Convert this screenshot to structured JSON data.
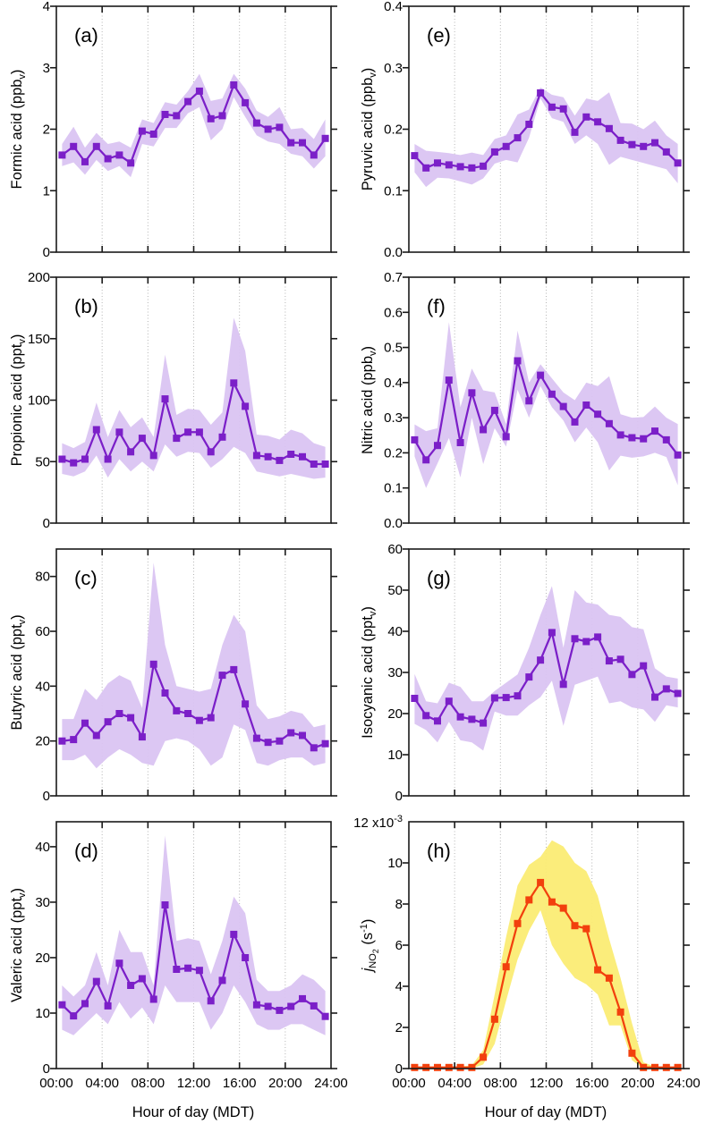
{
  "figure": {
    "xlabel": "Hour of day (MDT)",
    "x_tick_labels": [
      "00:00",
      "04:00",
      "08:00",
      "12:00",
      "16:00",
      "20:00",
      "24:00"
    ],
    "x_tick_hours": [
      0,
      4,
      8,
      12,
      16,
      20,
      24
    ],
    "grid_hours": [
      4,
      8,
      12,
      16,
      20
    ],
    "x_hours": [
      0.5,
      1.5,
      2.5,
      3.5,
      4.5,
      5.5,
      6.5,
      7.5,
      8.5,
      9.5,
      10.5,
      11.5,
      12.5,
      13.5,
      14.5,
      15.5,
      16.5,
      17.5,
      18.5,
      19.5,
      20.5,
      21.5,
      22.5,
      23.5
    ],
    "colors": {
      "acid_line": "#7B1FC8",
      "acid_band": "#DAC4F2",
      "jno2_line": "#F2400D",
      "jno2_band": "#FBEC74",
      "grid": "#B5B5B5",
      "axis": "#1A1A1A"
    }
  },
  "chart_data": [
    {
      "id": "a",
      "type": "line+band",
      "letter": "(a)",
      "ylabel_segments": [
        {
          "text": "Formic acid (ppb"
        },
        {
          "text": "v",
          "style": "sub"
        },
        {
          "text": ")"
        }
      ],
      "ylim": [
        0,
        4
      ],
      "ytick_values": [
        0,
        1,
        2,
        3,
        4
      ],
      "ytick_labels": [
        "0",
        "1",
        "2",
        "3",
        "4"
      ],
      "values": [
        1.58,
        1.72,
        1.47,
        1.72,
        1.52,
        1.58,
        1.45,
        1.97,
        1.92,
        2.24,
        2.22,
        2.45,
        2.62,
        2.17,
        2.22,
        2.72,
        2.43,
        2.1,
        2.0,
        2.03,
        1.78,
        1.78,
        1.58,
        1.85
      ],
      "band_upper": [
        1.76,
        2.04,
        1.7,
        1.94,
        1.76,
        1.8,
        1.7,
        2.16,
        2.1,
        2.44,
        2.4,
        2.62,
        2.9,
        2.46,
        2.5,
        2.9,
        2.66,
        2.3,
        2.2,
        2.36,
        2.0,
        2.02,
        1.84,
        2.16
      ],
      "band_lower": [
        1.4,
        1.46,
        1.26,
        1.5,
        1.32,
        1.4,
        1.22,
        1.76,
        1.72,
        2.02,
        2.02,
        2.26,
        2.36,
        1.82,
        2.0,
        2.52,
        2.2,
        1.9,
        1.8,
        1.76,
        1.6,
        1.56,
        1.36,
        1.56
      ],
      "line_color": "#7B1FC8",
      "band_color": "#DAC4F2"
    },
    {
      "id": "b",
      "type": "line+band",
      "letter": "(b)",
      "ylabel_segments": [
        {
          "text": "Propionic acid (ppt"
        },
        {
          "text": "v",
          "style": "sub"
        },
        {
          "text": ")"
        }
      ],
      "ylim": [
        0,
        200
      ],
      "ytick_values": [
        0,
        50,
        100,
        150,
        200
      ],
      "ytick_labels": [
        "0",
        "50",
        "100",
        "150",
        "200"
      ],
      "values": [
        52,
        49,
        52,
        76,
        52,
        74,
        58,
        69,
        55,
        101,
        69,
        74,
        74,
        58,
        70,
        114,
        95,
        55,
        54,
        51,
        56,
        54,
        48,
        48
      ],
      "band_upper": [
        65,
        61,
        66,
        98,
        70,
        92,
        78,
        86,
        70,
        137,
        88,
        93,
        92,
        80,
        90,
        167,
        140,
        72,
        71,
        68,
        76,
        73,
        65,
        62
      ],
      "band_lower": [
        40,
        38,
        42,
        55,
        37,
        52,
        42,
        50,
        42,
        64,
        54,
        58,
        57,
        45,
        52,
        62,
        57,
        42,
        40,
        38,
        40,
        38,
        36,
        37
      ],
      "line_color": "#7B1FC8",
      "band_color": "#DAC4F2"
    },
    {
      "id": "c",
      "type": "line+band",
      "letter": "(c)",
      "ylabel_segments": [
        {
          "text": "Butyric acid (ppt"
        },
        {
          "text": "v",
          "style": "sub"
        },
        {
          "text": ")"
        }
      ],
      "ylim": [
        0,
        90
      ],
      "ytick_values": [
        0,
        20,
        40,
        60,
        80
      ],
      "ytick_labels": [
        "0",
        "20",
        "40",
        "60",
        "80"
      ],
      "values": [
        20,
        20.5,
        26.5,
        22,
        27,
        30,
        28.5,
        21.5,
        48,
        37.5,
        31,
        30,
        27.5,
        28.5,
        44,
        46,
        33.5,
        21,
        19.5,
        20,
        23,
        22,
        17.5,
        19
      ],
      "band_upper": [
        28,
        28,
        39,
        35,
        41,
        44,
        42,
        32,
        85,
        55,
        40,
        39,
        38,
        39,
        55,
        66,
        60,
        33,
        28,
        29,
        31,
        30,
        25,
        26
      ],
      "band_lower": [
        13,
        13,
        15,
        10,
        14,
        17,
        15,
        12,
        11,
        20,
        21,
        20,
        17,
        11,
        14,
        26,
        24,
        12,
        11,
        13,
        14,
        14,
        11,
        12
      ],
      "line_color": "#7B1FC8",
      "band_color": "#DAC4F2"
    },
    {
      "id": "d",
      "type": "line+band",
      "letter": "(d)",
      "ylabel_segments": [
        {
          "text": "Valeric acid (ppt"
        },
        {
          "text": "v",
          "style": "sub"
        },
        {
          "text": ")"
        }
      ],
      "ylim": [
        0,
        44.5
      ],
      "ytick_values": [
        0,
        10,
        20,
        30,
        40
      ],
      "ytick_labels": [
        "0",
        "10",
        "20",
        "30",
        "40"
      ],
      "values": [
        11.5,
        9.5,
        11.7,
        15.7,
        11.3,
        19,
        15,
        16.2,
        12.5,
        29.5,
        17.9,
        18.1,
        17.7,
        12.2,
        15.9,
        24.2,
        20,
        11.5,
        11.2,
        10.5,
        11.2,
        12.6,
        11.3,
        9.4
      ],
      "band_upper": [
        15,
        13,
        15,
        21,
        15,
        25,
        21,
        21,
        15,
        42,
        23,
        23.5,
        23,
        17,
        23,
        31,
        28,
        16,
        14,
        14,
        15,
        17,
        16,
        14
      ],
      "band_lower": [
        7,
        6,
        8,
        10,
        8,
        12,
        9,
        11,
        8,
        15,
        12,
        12,
        12,
        7,
        10,
        15,
        12,
        8,
        7,
        7,
        8,
        8,
        7,
        6
      ],
      "line_color": "#7B1FC8",
      "band_color": "#DAC4F2"
    },
    {
      "id": "e",
      "type": "line+band",
      "letter": "(e)",
      "ylabel_segments": [
        {
          "text": "Pyruvic acid (ppb"
        },
        {
          "text": "v",
          "style": "sub"
        },
        {
          "text": ")"
        }
      ],
      "ylim": [
        0,
        0.4
      ],
      "ytick_values": [
        0,
        0.1,
        0.2,
        0.3,
        0.4
      ],
      "ytick_labels": [
        "0.0",
        "0.1",
        "0.2",
        "0.3",
        "0.4"
      ],
      "values": [
        0.157,
        0.137,
        0.145,
        0.142,
        0.139,
        0.137,
        0.14,
        0.163,
        0.172,
        0.186,
        0.208,
        0.259,
        0.236,
        0.233,
        0.195,
        0.22,
        0.212,
        0.201,
        0.182,
        0.175,
        0.172,
        0.178,
        0.163,
        0.145
      ],
      "band_upper": [
        0.176,
        0.165,
        0.163,
        0.161,
        0.158,
        0.162,
        0.158,
        0.184,
        0.19,
        0.224,
        0.232,
        0.268,
        0.256,
        0.252,
        0.222,
        0.25,
        0.246,
        0.26,
        0.21,
        0.209,
        0.2,
        0.214,
        0.19,
        0.176
      ],
      "band_lower": [
        0.13,
        0.106,
        0.121,
        0.12,
        0.115,
        0.11,
        0.12,
        0.144,
        0.15,
        0.146,
        0.186,
        0.25,
        0.218,
        0.212,
        0.176,
        0.19,
        0.176,
        0.142,
        0.155,
        0.15,
        0.145,
        0.14,
        0.135,
        0.112
      ],
      "line_color": "#7B1FC8",
      "band_color": "#DAC4F2"
    },
    {
      "id": "f",
      "type": "line+band",
      "letter": "(f)",
      "ylabel_segments": [
        {
          "text": "Nitric acid (ppb"
        },
        {
          "text": "v",
          "style": "sub"
        },
        {
          "text": ")"
        }
      ],
      "ylim": [
        0,
        0.7
      ],
      "ytick_values": [
        0,
        0.1,
        0.2,
        0.3,
        0.4,
        0.5,
        0.6,
        0.7
      ],
      "ytick_labels": [
        "0.0",
        "0.1",
        "0.2",
        "0.3",
        "0.4",
        "0.5",
        "0.6",
        "0.7"
      ],
      "values": [
        0.237,
        0.18,
        0.221,
        0.407,
        0.229,
        0.371,
        0.266,
        0.321,
        0.246,
        0.462,
        0.348,
        0.421,
        0.367,
        0.332,
        0.288,
        0.336,
        0.31,
        0.283,
        0.251,
        0.243,
        0.24,
        0.262,
        0.237,
        0.194
      ],
      "band_upper": [
        0.281,
        0.262,
        0.27,
        0.572,
        0.33,
        0.44,
        0.378,
        0.372,
        0.282,
        0.548,
        0.4,
        0.452,
        0.412,
        0.372,
        0.35,
        0.4,
        0.39,
        0.418,
        0.31,
        0.3,
        0.302,
        0.332,
        0.3,
        0.282
      ],
      "band_lower": [
        0.19,
        0.1,
        0.17,
        0.242,
        0.13,
        0.3,
        0.168,
        0.27,
        0.218,
        0.38,
        0.3,
        0.39,
        0.33,
        0.292,
        0.23,
        0.272,
        0.23,
        0.15,
        0.192,
        0.186,
        0.19,
        0.2,
        0.188,
        0.108
      ],
      "line_color": "#7B1FC8",
      "band_color": "#DAC4F2"
    },
    {
      "id": "g",
      "type": "line+band",
      "letter": "(g)",
      "ylabel_segments": [
        {
          "text": "Isocyanic acid (ppt"
        },
        {
          "text": "v",
          "style": "sub"
        },
        {
          "text": ")"
        }
      ],
      "ylim": [
        0,
        60
      ],
      "ytick_values": [
        0,
        10,
        20,
        30,
        40,
        50,
        60
      ],
      "ytick_labels": [
        "0",
        "10",
        "20",
        "30",
        "40",
        "50",
        "60"
      ],
      "values": [
        23.7,
        19.5,
        18.2,
        23.0,
        19.2,
        18.6,
        17.7,
        23.8,
        23.9,
        24.3,
        28.9,
        33.0,
        39.7,
        27.1,
        38.2,
        37.5,
        38.6,
        32.8,
        33.2,
        29.5,
        31.6,
        24.0,
        26.0,
        24.9
      ],
      "band_upper": [
        29.6,
        23.0,
        22.5,
        27.5,
        26.5,
        23.0,
        23.0,
        25.5,
        27.5,
        29.5,
        36.0,
        44.0,
        51.0,
        36.0,
        50.0,
        47.0,
        46.5,
        44.0,
        43.5,
        41.0,
        40.5,
        31.0,
        29.0,
        28.5
      ],
      "band_lower": [
        17.5,
        16.0,
        13.0,
        18.0,
        13.5,
        13.0,
        11.0,
        20.5,
        19.5,
        19.5,
        22.0,
        24.0,
        28.0,
        17.0,
        27.0,
        28.0,
        29.0,
        22.5,
        23.0,
        21.5,
        21.0,
        18.0,
        22.0,
        21.5
      ],
      "line_color": "#7B1FC8",
      "band_color": "#DAC4F2"
    },
    {
      "id": "h",
      "type": "line+band",
      "letter": "(h)",
      "ylabel_segments": [
        {
          "text": "j",
          "style": "italic"
        },
        {
          "text": "NO",
          "style": "sub"
        },
        {
          "text": "2",
          "style": "subsub"
        },
        {
          "text": " (s",
          "style": ""
        },
        {
          "text": "-1",
          "style": "sup"
        },
        {
          "text": ")",
          "style": ""
        }
      ],
      "ylim": [
        0,
        12
      ],
      "ytick_values": [
        0,
        2,
        4,
        6,
        8,
        10
      ],
      "ytick_labels": [
        "0",
        "2",
        "4",
        "6",
        "8",
        "10"
      ],
      "top_label_value": 12,
      "top_label_segments": [
        {
          "text": "12 x10"
        },
        {
          "text": "-3",
          "style": "sup"
        }
      ],
      "values": [
        0.05,
        0.05,
        0.05,
        0.05,
        0.05,
        0.05,
        0.55,
        2.4,
        4.95,
        7.05,
        8.2,
        9.05,
        8.1,
        7.8,
        6.95,
        6.8,
        4.8,
        4.4,
        2.75,
        0.75,
        0.05,
        0.05,
        0.05,
        0.05
      ],
      "band_upper": [
        0.1,
        0.1,
        0.1,
        0.1,
        0.1,
        0.15,
        0.9,
        3.6,
        6.4,
        8.9,
        9.9,
        10.3,
        11.1,
        10.8,
        10.0,
        9.6,
        8.4,
        6.3,
        4.4,
        2.2,
        0.3,
        0.1,
        0.1,
        0.1
      ],
      "band_lower": [
        0,
        0,
        0,
        0,
        0,
        0,
        0.2,
        1.2,
        3.3,
        5.3,
        6.7,
        7.7,
        6.0,
        5.1,
        4.4,
        4.1,
        3.6,
        2.1,
        2.1,
        0.4,
        0,
        0,
        0,
        0
      ],
      "line_color": "#F2400D",
      "band_color": "#FBEC74"
    }
  ]
}
